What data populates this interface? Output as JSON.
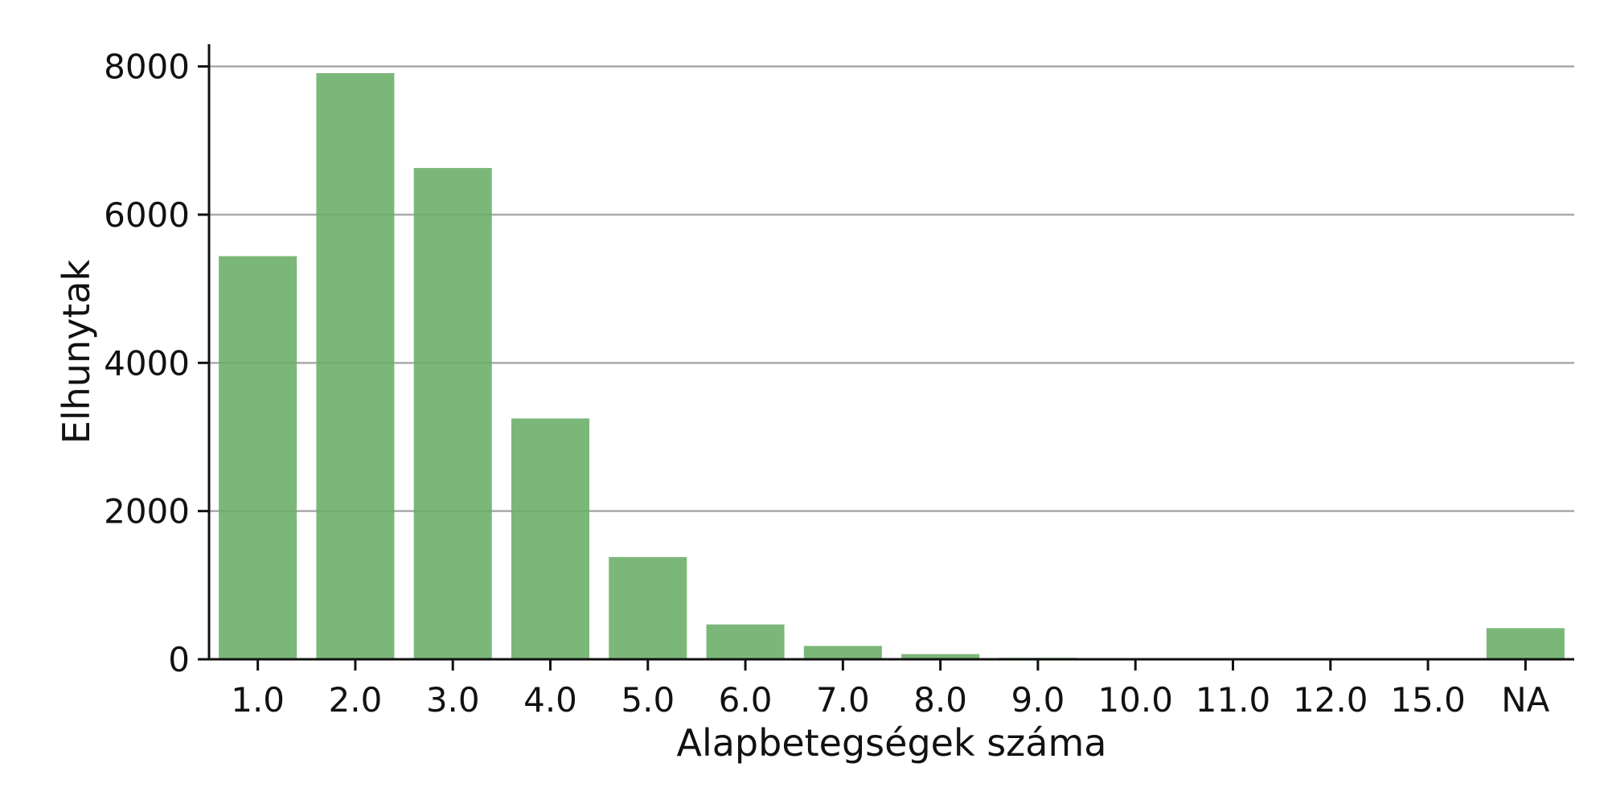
{
  "chart_data": {
    "type": "bar",
    "title": "",
    "xlabel": "Alapbetegségek száma",
    "ylabel": "Elhunytak",
    "categories": [
      "1.0",
      "2.0",
      "3.0",
      "4.0",
      "5.0",
      "6.0",
      "7.0",
      "8.0",
      "9.0",
      "10.0",
      "11.0",
      "12.0",
      "15.0",
      "NA"
    ],
    "values": [
      5440,
      7910,
      6630,
      3250,
      1380,
      470,
      180,
      70,
      20,
      5,
      3,
      2,
      2,
      420
    ],
    "ylim": [
      0,
      8300
    ],
    "yticks": [
      0,
      2000,
      4000,
      6000,
      8000
    ],
    "grid": "horizontal",
    "bar_color": "#6aad68",
    "bar_opacity": 0.88
  }
}
